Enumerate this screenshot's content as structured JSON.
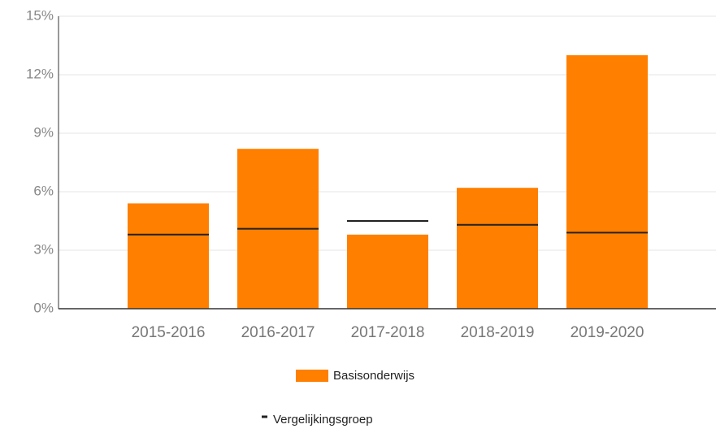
{
  "chart_data": {
    "type": "bar",
    "categories": [
      "2015-2016",
      "2016-2017",
      "2017-2018",
      "2018-2019",
      "2019-2020"
    ],
    "series": [
      {
        "name": "Basisonderwijs",
        "color": "#ff7f00",
        "values": [
          5.4,
          8.2,
          3.8,
          6.2,
          13.0
        ]
      },
      {
        "name": "Vergelijkingsgroep",
        "color": "#222222",
        "values": [
          3.8,
          4.1,
          4.5,
          4.3,
          3.9
        ]
      }
    ],
    "ylim": [
      0,
      15
    ],
    "yticks": [
      {
        "value": 0,
        "label": "0%"
      },
      {
        "value": 3,
        "label": "3%"
      },
      {
        "value": 6,
        "label": "6%"
      },
      {
        "value": 9,
        "label": "9%"
      },
      {
        "value": 12,
        "label": "12%"
      },
      {
        "value": 15,
        "label": "15%"
      }
    ],
    "grid": true
  }
}
